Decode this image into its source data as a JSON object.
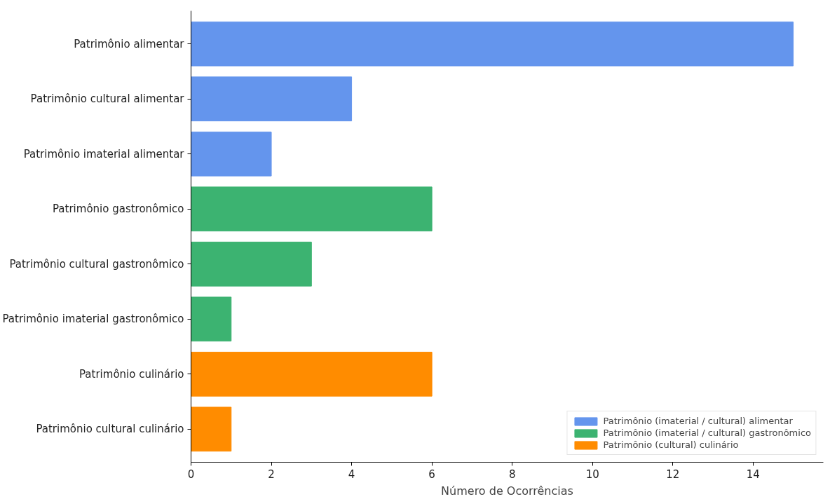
{
  "chart_data": {
    "type": "bar",
    "orientation": "horizontal",
    "xlabel": "Número de Ocorrências",
    "categories": [
      "Patrimônio alimentar",
      "Patrimônio cultural alimentar",
      "Patrimônio imaterial alimentar",
      "Patrimônio gastronômico",
      "Patrimônio cultural gastronômico",
      "Patrimônio imaterial gastronômico",
      "Patrimônio culinário",
      "Patrimônio cultural culinário"
    ],
    "series": [
      {
        "name": "Patrimônio (imaterial / cultural) alimentar",
        "color": "#6495ed",
        "values": [
          15,
          4,
          2,
          null,
          null,
          null,
          null,
          null
        ]
      },
      {
        "name": "Patrimônio (imaterial / cultural) gastronômico",
        "color": "#3cb371",
        "values": [
          null,
          null,
          null,
          6,
          3,
          1,
          null,
          null
        ]
      },
      {
        "name": "Patrimônio (cultural) culinário",
        "color": "#ff8c00",
        "values": [
          null,
          null,
          null,
          null,
          null,
          null,
          6,
          1
        ]
      }
    ],
    "xlim": [
      0,
      15.75
    ],
    "xticks": [
      0,
      2,
      4,
      6,
      8,
      10,
      12,
      14
    ],
    "grid": false,
    "legend": "bottom right"
  }
}
